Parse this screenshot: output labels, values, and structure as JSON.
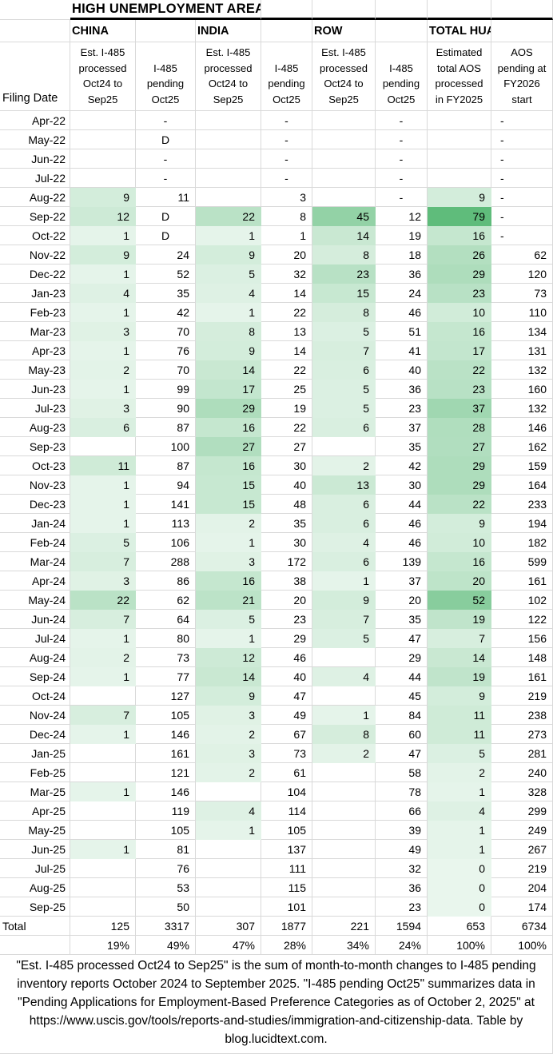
{
  "chart_data": {
    "type": "table",
    "subtype": "heatmap",
    "title": "HIGH UNEMPLOYMENT AREA",
    "row_header": "Filing Date",
    "column_groups": [
      "CHINA",
      "INDIA",
      "ROW",
      "TOTAL HUA"
    ],
    "columns": [
      "Est. I-485\nprocessed\nOct24 to\nSep25",
      "I-485\npending\nOct25",
      "Est. I-485\nprocessed\nOct24 to\nSep25",
      "I-485\npending\nOct25",
      "Est. I-485\nprocessed\nOct24 to\nSep25",
      "I-485\npending\nOct25",
      "Estimated\ntotal AOS\nprocessed\nin FY2025",
      "AOS\npending at\nFY2026\nstart"
    ],
    "rows": [
      {
        "date": "Apr-22",
        "values": [
          null,
          "-",
          null,
          "-",
          null,
          "-",
          null,
          "-"
        ]
      },
      {
        "date": "May-22",
        "values": [
          null,
          "D",
          null,
          "-",
          null,
          "-",
          null,
          "-"
        ]
      },
      {
        "date": "Jun-22",
        "values": [
          null,
          "-",
          null,
          "-",
          null,
          "-",
          null,
          "-"
        ]
      },
      {
        "date": "Jul-22",
        "values": [
          null,
          "-",
          null,
          "-",
          null,
          "-",
          null,
          "-"
        ]
      },
      {
        "date": "Aug-22",
        "values": [
          9,
          11,
          null,
          3,
          null,
          "-",
          9,
          "-"
        ]
      },
      {
        "date": "Sep-22",
        "values": [
          12,
          "D",
          22,
          8,
          45,
          12,
          79,
          "-"
        ]
      },
      {
        "date": "Oct-22",
        "values": [
          1,
          "D",
          1,
          1,
          14,
          19,
          16,
          "-"
        ]
      },
      {
        "date": "Nov-22",
        "values": [
          9,
          24,
          9,
          20,
          8,
          18,
          26,
          62
        ]
      },
      {
        "date": "Dec-22",
        "values": [
          1,
          52,
          5,
          32,
          23,
          36,
          29,
          120
        ]
      },
      {
        "date": "Jan-23",
        "values": [
          4,
          35,
          4,
          14,
          15,
          24,
          23,
          73
        ]
      },
      {
        "date": "Feb-23",
        "values": [
          1,
          42,
          1,
          22,
          8,
          46,
          10,
          110
        ]
      },
      {
        "date": "Mar-23",
        "values": [
          3,
          70,
          8,
          13,
          5,
          51,
          16,
          134
        ]
      },
      {
        "date": "Apr-23",
        "values": [
          1,
          76,
          9,
          14,
          7,
          41,
          17,
          131
        ]
      },
      {
        "date": "May-23",
        "values": [
          2,
          70,
          14,
          22,
          6,
          40,
          22,
          132
        ]
      },
      {
        "date": "Jun-23",
        "values": [
          1,
          99,
          17,
          25,
          5,
          36,
          23,
          160
        ]
      },
      {
        "date": "Jul-23",
        "values": [
          3,
          90,
          29,
          19,
          5,
          23,
          37,
          132
        ]
      },
      {
        "date": "Aug-23",
        "values": [
          6,
          87,
          16,
          22,
          6,
          37,
          28,
          146
        ]
      },
      {
        "date": "Sep-23",
        "values": [
          null,
          100,
          27,
          27,
          null,
          35,
          27,
          162
        ]
      },
      {
        "date": "Oct-23",
        "values": [
          11,
          87,
          16,
          30,
          2,
          42,
          29,
          159
        ]
      },
      {
        "date": "Nov-23",
        "values": [
          1,
          94,
          15,
          40,
          13,
          30,
          29,
          164
        ]
      },
      {
        "date": "Dec-23",
        "values": [
          1,
          141,
          15,
          48,
          6,
          44,
          22,
          233
        ]
      },
      {
        "date": "Jan-24",
        "values": [
          1,
          113,
          2,
          35,
          6,
          46,
          9,
          194
        ]
      },
      {
        "date": "Feb-24",
        "values": [
          5,
          106,
          1,
          30,
          4,
          46,
          10,
          182
        ]
      },
      {
        "date": "Mar-24",
        "values": [
          7,
          288,
          3,
          172,
          6,
          139,
          16,
          599
        ]
      },
      {
        "date": "Apr-24",
        "values": [
          3,
          86,
          16,
          38,
          1,
          37,
          20,
          161
        ]
      },
      {
        "date": "May-24",
        "values": [
          22,
          62,
          21,
          20,
          9,
          20,
          52,
          102
        ]
      },
      {
        "date": "Jun-24",
        "values": [
          7,
          64,
          5,
          23,
          7,
          35,
          19,
          122
        ]
      },
      {
        "date": "Jul-24",
        "values": [
          1,
          80,
          1,
          29,
          5,
          47,
          7,
          156
        ]
      },
      {
        "date": "Aug-24",
        "values": [
          2,
          73,
          12,
          46,
          null,
          29,
          14,
          148
        ]
      },
      {
        "date": "Sep-24",
        "values": [
          1,
          77,
          14,
          40,
          4,
          44,
          19,
          161
        ]
      },
      {
        "date": "Oct-24",
        "values": [
          null,
          127,
          9,
          47,
          null,
          45,
          9,
          219
        ]
      },
      {
        "date": "Nov-24",
        "values": [
          7,
          105,
          3,
          49,
          1,
          84,
          11,
          238
        ]
      },
      {
        "date": "Dec-24",
        "values": [
          1,
          146,
          2,
          67,
          8,
          60,
          11,
          273
        ]
      },
      {
        "date": "Jan-25",
        "values": [
          null,
          161,
          3,
          73,
          2,
          47,
          5,
          281
        ]
      },
      {
        "date": "Feb-25",
        "values": [
          null,
          121,
          2,
          61,
          null,
          58,
          2,
          240
        ]
      },
      {
        "date": "Mar-25",
        "values": [
          1,
          146,
          null,
          104,
          null,
          78,
          1,
          328
        ]
      },
      {
        "date": "Apr-25",
        "values": [
          null,
          119,
          4,
          114,
          null,
          66,
          4,
          299
        ]
      },
      {
        "date": "May-25",
        "values": [
          null,
          105,
          1,
          105,
          null,
          39,
          1,
          249
        ]
      },
      {
        "date": "Jun-25",
        "values": [
          1,
          81,
          null,
          137,
          null,
          49,
          1,
          267
        ]
      },
      {
        "date": "Jul-25",
        "values": [
          null,
          76,
          null,
          111,
          null,
          32,
          0,
          219
        ]
      },
      {
        "date": "Aug-25",
        "values": [
          null,
          53,
          null,
          115,
          null,
          36,
          0,
          204
        ]
      },
      {
        "date": "Sep-25",
        "values": [
          null,
          50,
          null,
          101,
          null,
          23,
          0,
          174
        ]
      }
    ],
    "total_row": {
      "label": "Total",
      "values": [
        125,
        3317,
        307,
        1877,
        221,
        1594,
        653,
        6734
      ]
    },
    "percent_row": {
      "values": [
        "19%",
        "49%",
        "47%",
        "28%",
        "34%",
        "24%",
        "100%",
        "100%"
      ]
    },
    "footnote": "\"Est. I-485 processed Oct24 to Sep25\" is the sum of month-to-month changes to I-485 pending inventory reports October 2024 to September 2025. \"I-485 pending Oct25\" summarizes data in \"Pending Applications for Employment-Based Preference Categories as of October 2, 2025\" at https://www.uscis.gov/tools/reports-and-studies/immigration-and-citizenship-data. Table by blog.lucidtext.com.",
    "heatmap": {
      "columns": [
        0,
        2,
        4,
        6
      ],
      "max_value": 79,
      "floor": 0.14,
      "exponent": 0.85,
      "start_color": "#FFFFFF",
      "end_color": "#5FBC7B"
    },
    "colors": {
      "grid": "#D9D9D9",
      "thick_border": "#000000",
      "text": "#000000",
      "background": "#FFFFFF"
    }
  }
}
